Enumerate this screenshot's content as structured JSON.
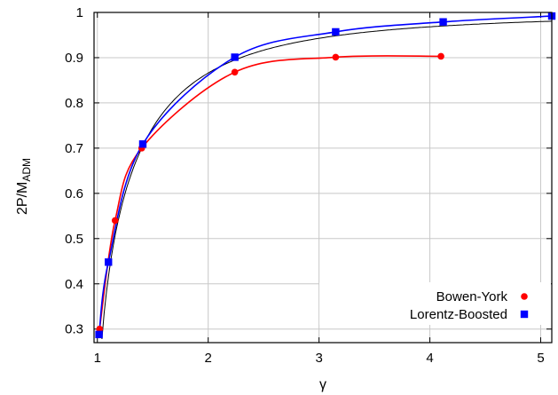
{
  "chart_data": {
    "type": "line",
    "xlabel": "γ",
    "ylabel": {
      "base": "2P/M",
      "sub": "ADM"
    },
    "xlim": [
      0.97,
      5.1
    ],
    "ylim": [
      0.27,
      1.0
    ],
    "x_ticks": [
      1,
      2,
      3,
      4,
      5
    ],
    "y_ticks": [
      0.3,
      0.4,
      0.5,
      0.6,
      0.7,
      0.8,
      0.9,
      1
    ],
    "grid": true,
    "legend_position": "bottom-right",
    "series": [
      {
        "name": "Bowen-York",
        "color": "#ff0000",
        "marker": "circle",
        "points": [
          {
            "x": 1.02,
            "y": 0.3
          },
          {
            "x": 1.16,
            "y": 0.54
          },
          {
            "x": 1.4,
            "y": 0.7
          },
          {
            "x": 2.24,
            "y": 0.868
          },
          {
            "x": 3.15,
            "y": 0.901
          },
          {
            "x": 4.1,
            "y": 0.903
          }
        ]
      },
      {
        "name": "Lorentz-Boosted",
        "color": "#0000ff",
        "marker": "square",
        "points": [
          {
            "x": 1.015,
            "y": 0.288
          },
          {
            "x": 1.1,
            "y": 0.448
          },
          {
            "x": 1.41,
            "y": 0.709
          },
          {
            "x": 2.24,
            "y": 0.901
          },
          {
            "x": 3.15,
            "y": 0.957
          },
          {
            "x": 4.12,
            "y": 0.979
          },
          {
            "x": 5.1,
            "y": 0.992
          }
        ]
      }
    ],
    "reference_curve": {
      "color": "#000000",
      "formula": "sqrt(1 - 1/x^2)"
    }
  }
}
